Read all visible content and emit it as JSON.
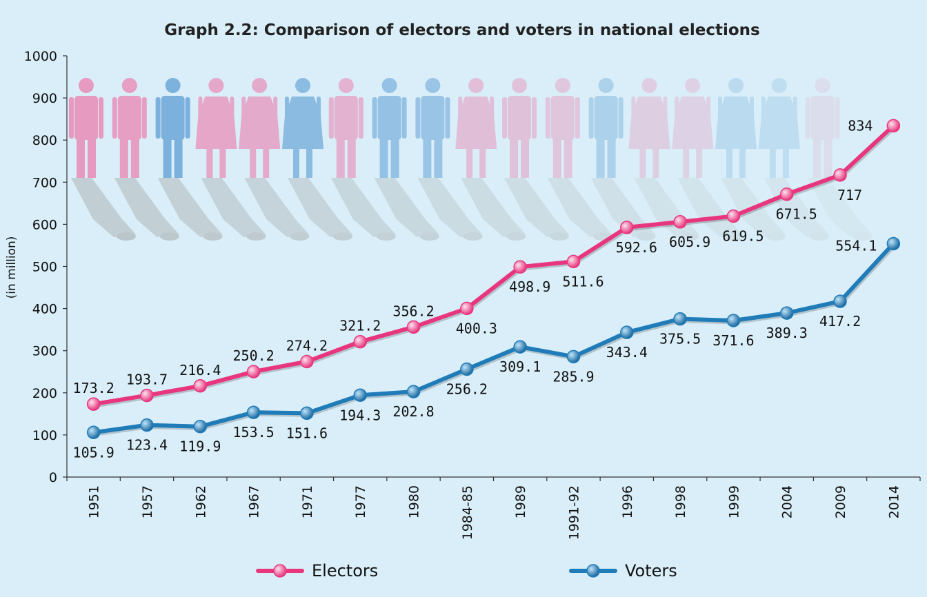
{
  "chart_data": {
    "type": "line",
    "title": "Graph 2.2: Comparison of electors and voters in national elections",
    "ylabel": "(in million)",
    "xlabel": "",
    "ylim": [
      0,
      1000
    ],
    "yticks": [
      0,
      100,
      200,
      300,
      400,
      500,
      600,
      700,
      800,
      900,
      1000
    ],
    "categories": [
      "1951",
      "1957",
      "1962",
      "1967",
      "1971",
      "1977",
      "1980",
      "1984-85",
      "1989",
      "1991-92",
      "1996",
      "1998",
      "1999",
      "2004",
      "2009",
      "2014"
    ],
    "series": [
      {
        "name": "Electors",
        "color": "#e8367e",
        "values": [
          173.2,
          193.7,
          216.4,
          250.2,
          274.2,
          321.2,
          356.2,
          400.3,
          498.9,
          511.6,
          592.6,
          605.9,
          619.5,
          671.5,
          717,
          834
        ],
        "labels": [
          "173.2",
          "193.7",
          "216.4",
          "250.2",
          "274.2",
          "321.2",
          "356.2",
          "400.3",
          "498.9",
          "511.6",
          "592.6",
          "605.9",
          "619.5",
          "671.5",
          "717",
          "834"
        ]
      },
      {
        "name": "Voters",
        "color": "#1f7cb8",
        "values": [
          105.9,
          123.4,
          119.9,
          153.5,
          151.6,
          194.3,
          202.8,
          256.2,
          309.1,
          285.9,
          343.4,
          375.5,
          371.6,
          389.3,
          417.2,
          554.1
        ],
        "labels": [
          "105.9",
          "123.4",
          "119.9",
          "153.5",
          "151.6",
          "194.3",
          "202.8",
          "256.2",
          "309.1",
          "285.9",
          "343.4",
          "375.5",
          "371.6",
          "389.3",
          "417.2",
          "554.1"
        ]
      }
    ],
    "legend": {
      "position": "bottom",
      "entries": [
        "Electors",
        "Voters"
      ]
    },
    "grid": false,
    "background_figures": {
      "count": 18,
      "colors": [
        "#e896be",
        "#6ea8d9"
      ]
    }
  }
}
